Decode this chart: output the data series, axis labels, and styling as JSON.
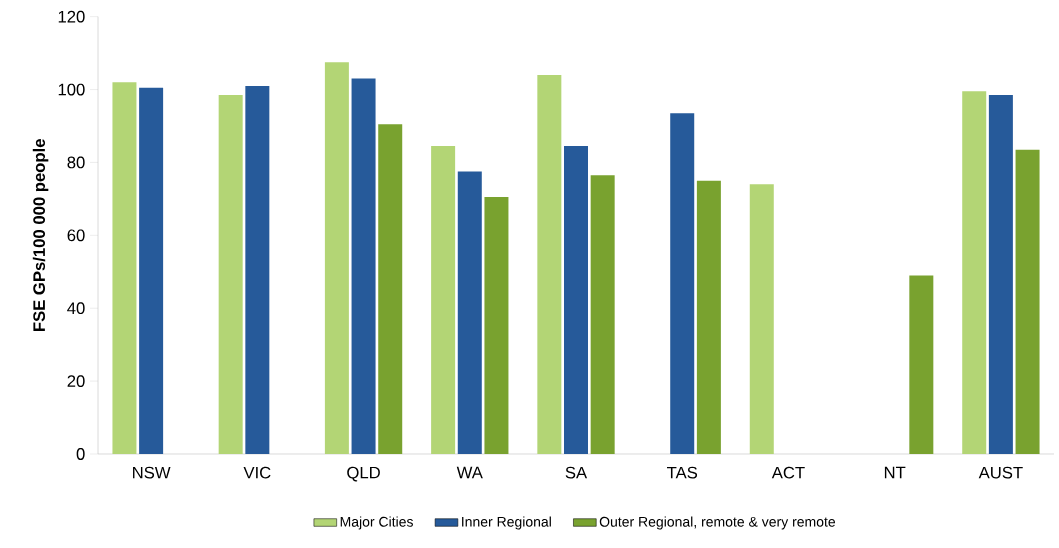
{
  "chart_data": {
    "type": "bar",
    "ylabel": "FSE GPs/100 000 people",
    "categories": [
      "NSW",
      "VIC",
      "QLD",
      "WA",
      "SA",
      "TAS",
      "ACT",
      "NT",
      "AUST"
    ],
    "series": [
      {
        "name": "Major Cities",
        "color": "#b3d575",
        "values": [
          102,
          98.5,
          107.5,
          84.5,
          104,
          null,
          74,
          null,
          99.5
        ]
      },
      {
        "name": "Inner Regional",
        "color": "#265a9a",
        "values": [
          100.5,
          101,
          103,
          77.5,
          84.5,
          93.5,
          null,
          null,
          98.5
        ]
      },
      {
        "name": "Outer Regional, remote & very remote",
        "color": "#79a22f",
        "values": [
          null,
          null,
          90.5,
          70.5,
          76.5,
          75,
          null,
          49,
          83.5
        ]
      }
    ],
    "ylim": [
      0,
      120
    ],
    "yticks": [
      0,
      20,
      40,
      60,
      80,
      100,
      120
    ],
    "grid": false,
    "legend": "bottom"
  }
}
